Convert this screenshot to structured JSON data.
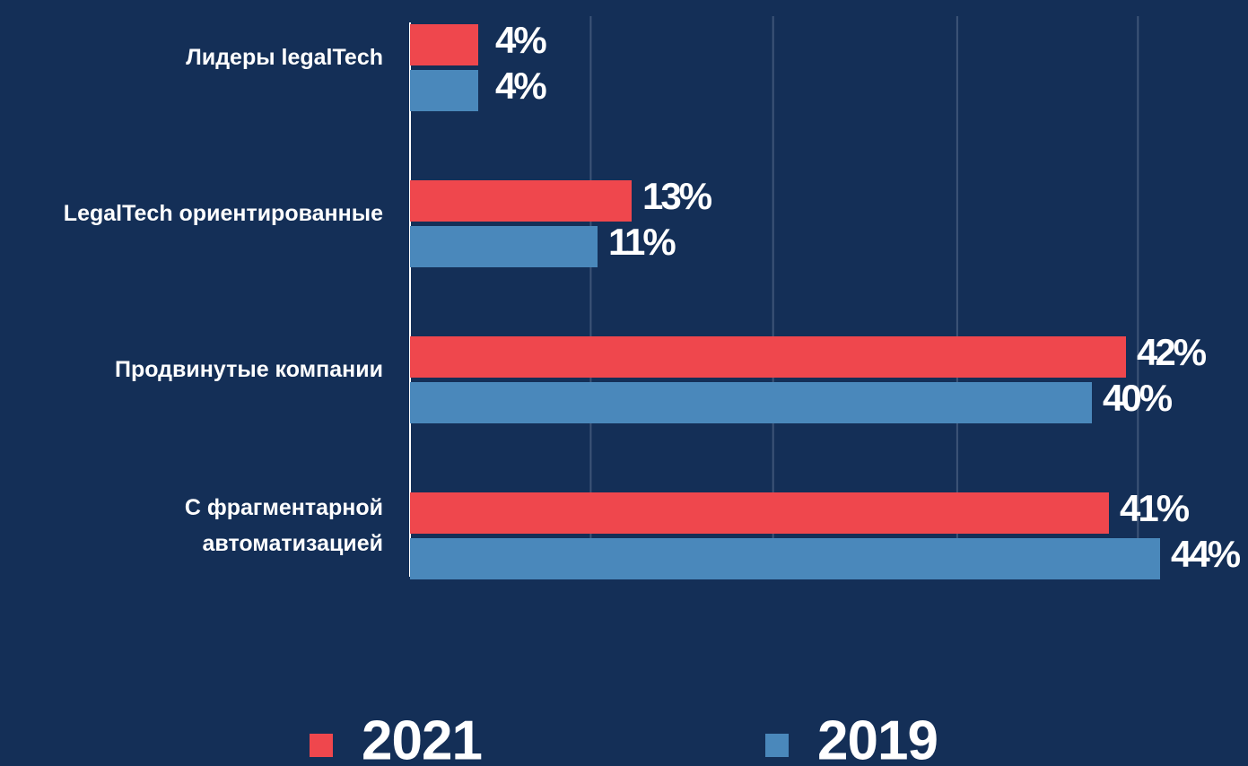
{
  "chart_data": {
    "type": "bar",
    "orientation": "horizontal",
    "categories": [
      "Лидеры legalTech",
      "LegalTech ориентированные",
      "Продвинутые компании",
      "С фрагментарной\nавтоматизацией"
    ],
    "series": [
      {
        "name": "2021",
        "color": "#ef474d",
        "values": [
          4,
          13,
          42,
          41
        ],
        "value_labels": [
          "4%",
          "13%",
          "42%",
          "41%"
        ]
      },
      {
        "name": "2019",
        "color": "#4a88bb",
        "values": [
          4,
          11,
          40,
          44
        ],
        "value_labels": [
          "4%",
          "11%",
          "40%",
          "44%"
        ]
      }
    ],
    "xlim": [
      0,
      44
    ],
    "xticks": [
      0,
      10.6,
      21.3,
      32.1,
      42.7
    ],
    "grid": true,
    "legend": "bottom"
  }
}
